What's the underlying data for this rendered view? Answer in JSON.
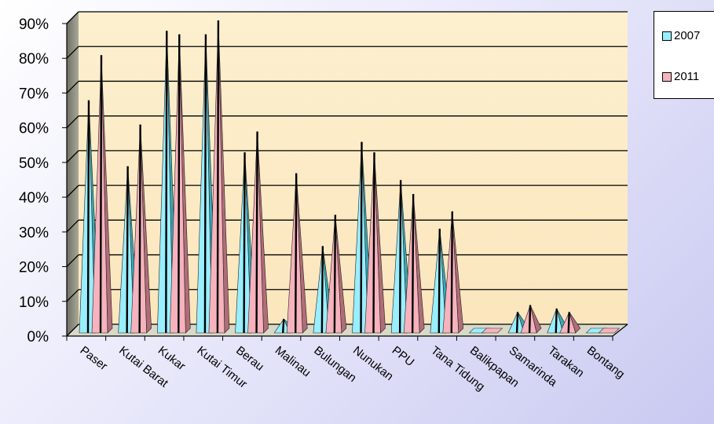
{
  "chart_data": {
    "type": "bar",
    "title": "",
    "xlabel": "",
    "ylabel": "",
    "ylim": [
      0,
      90
    ],
    "ytick_values": [
      0,
      10,
      20,
      30,
      40,
      50,
      60,
      70,
      80,
      90
    ],
    "ytick_labels": [
      "0%",
      "10%",
      "20%",
      "30%",
      "40%",
      "50%",
      "60%",
      "70%",
      "80%",
      "90%"
    ],
    "categories": [
      "Paser",
      "Kutai Barat",
      "Kukar",
      "Kutai Timur",
      "Berau",
      "Malinau",
      "Bulungan",
      "Nunukan",
      "PPU",
      "Tana Tidung",
      "Balikpapan",
      "Samarinda",
      "Tarakan",
      "Bontang"
    ],
    "series": [
      {
        "name": "2007",
        "values": [
          67,
          48,
          87,
          86,
          52,
          4,
          25,
          55,
          44,
          30,
          0,
          6,
          7,
          0
        ]
      },
      {
        "name": "2011",
        "values": [
          80,
          60,
          86,
          90,
          58,
          46,
          34,
          52,
          40,
          35,
          0,
          8,
          6,
          0
        ]
      }
    ],
    "legend_position": "top-right",
    "grid": true,
    "colors": {
      "2007": "#99eeff",
      "2011": "#f6b3bd",
      "wall": "#fdeecb",
      "side_wall": "#8a8a7c"
    }
  }
}
